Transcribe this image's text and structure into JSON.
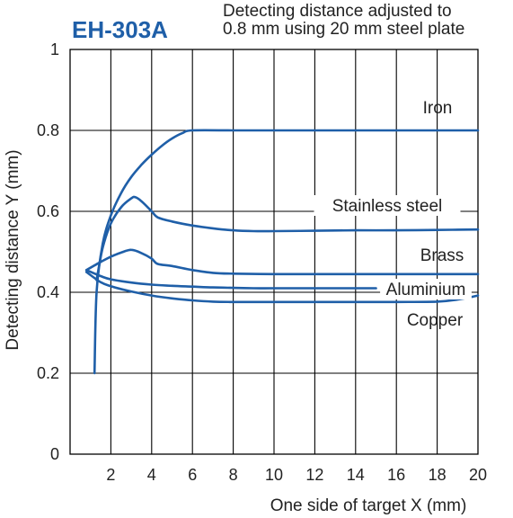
{
  "title": "EH-303A",
  "subtitle_lines": [
    "Detecting distance adjusted to",
    "0.8 mm using 20 mm steel plate"
  ],
  "colors": {
    "line": "#1f5fa8",
    "grid": "#000000",
    "title": "#1f5fa8"
  },
  "chart_data": {
    "type": "line",
    "title": "EH-303A",
    "xlabel": "One side of target X (mm)",
    "ylabel": "Detecting distance Y (mm)",
    "xlim": [
      0,
      20
    ],
    "ylim": [
      0,
      1
    ],
    "x_ticks": [
      2,
      4,
      6,
      8,
      10,
      12,
      14,
      16,
      18,
      20
    ],
    "y_ticks": [
      0,
      0.2,
      0.4,
      0.6,
      0.8,
      1
    ],
    "y_tick_labels": [
      "0",
      "0.2",
      "0.4",
      "0.6",
      "0.8",
      "1"
    ],
    "grid": true,
    "series": [
      {
        "name": "Iron",
        "x": [
          1.2,
          1.3,
          1.6,
          2.0,
          2.5,
          3.0,
          3.5,
          4.0,
          4.5,
          5.0,
          5.5,
          6.0,
          8,
          10,
          12,
          14,
          16,
          18,
          20
        ],
        "y": [
          0.2,
          0.4,
          0.52,
          0.59,
          0.645,
          0.685,
          0.715,
          0.74,
          0.762,
          0.78,
          0.793,
          0.8,
          0.8,
          0.8,
          0.8,
          0.8,
          0.8,
          0.8,
          0.8
        ]
      },
      {
        "name": "Stainless steel",
        "x": [
          1.3,
          1.6,
          2.0,
          2.5,
          3.0,
          3.2,
          3.5,
          4.0,
          4.3,
          5.0,
          6,
          7,
          8,
          9,
          10,
          12,
          14,
          16,
          18,
          20
        ],
        "y": [
          0.43,
          0.51,
          0.57,
          0.61,
          0.632,
          0.635,
          0.625,
          0.6,
          0.585,
          0.575,
          0.565,
          0.558,
          0.553,
          0.551,
          0.551,
          0.552,
          0.553,
          0.553,
          0.554,
          0.555
        ]
      },
      {
        "name": "Brass",
        "x": [
          0.8,
          1.5,
          2.0,
          2.5,
          3.0,
          3.5,
          4.0,
          4.3,
          5.0,
          6,
          7,
          8,
          10,
          12,
          14,
          16,
          18,
          20
        ],
        "y": [
          0.455,
          0.475,
          0.488,
          0.498,
          0.505,
          0.497,
          0.483,
          0.47,
          0.465,
          0.455,
          0.448,
          0.446,
          0.445,
          0.445,
          0.445,
          0.445,
          0.445,
          0.445
        ]
      },
      {
        "name": "Aluminium",
        "x": [
          0.8,
          1.5,
          2.0,
          3.0,
          4.0,
          5.0,
          6,
          7,
          8,
          9,
          10,
          12,
          14,
          15
        ],
        "y": [
          0.455,
          0.44,
          0.432,
          0.424,
          0.419,
          0.416,
          0.414,
          0.412,
          0.411,
          0.41,
          0.41,
          0.41,
          0.41,
          0.41
        ]
      },
      {
        "name": "Copper",
        "x": [
          0.8,
          1.5,
          2.0,
          3.0,
          4.0,
          5.0,
          6,
          7,
          8,
          10,
          12,
          14,
          16,
          18,
          19,
          20
        ],
        "y": [
          0.45,
          0.425,
          0.415,
          0.402,
          0.392,
          0.385,
          0.38,
          0.377,
          0.376,
          0.376,
          0.376,
          0.376,
          0.376,
          0.377,
          0.382,
          0.392
        ]
      }
    ],
    "annotations": [
      "Iron",
      "Stainless steel",
      "Brass",
      "Aluminium",
      "Copper"
    ]
  }
}
